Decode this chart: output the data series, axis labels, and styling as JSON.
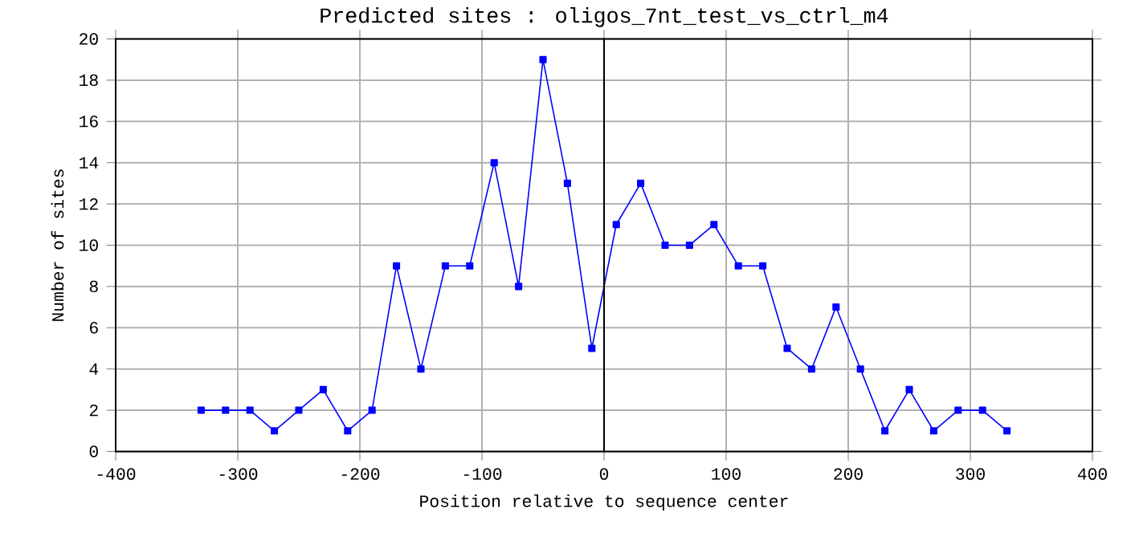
{
  "chart_data": {
    "type": "line",
    "title": "Predicted sites : oligos_7nt_test_vs_ctrl_m4",
    "xlabel": "Position relative to sequence center",
    "ylabel": "Number of sites",
    "x": [
      -330,
      -310,
      -290,
      -270,
      -250,
      -230,
      -210,
      -190,
      -170,
      -150,
      -130,
      -110,
      -90,
      -70,
      -50,
      -30,
      -10,
      10,
      30,
      50,
      70,
      90,
      110,
      130,
      150,
      170,
      190,
      210,
      230,
      250,
      270,
      290,
      310,
      330
    ],
    "series": [
      {
        "color": "#0000ff",
        "values": [
          2,
          2,
          2,
          1,
          2,
          3,
          1,
          2,
          9,
          4,
          9,
          9,
          14,
          8,
          19,
          13,
          5,
          11,
          13,
          10,
          10,
          11,
          9,
          9,
          5,
          4,
          7,
          4,
          1,
          3,
          1,
          2,
          2,
          1
        ]
      }
    ],
    "xlim": [
      -400,
      400
    ],
    "xticks": [
      -400,
      -300,
      -200,
      -100,
      0,
      100,
      200,
      300,
      400
    ],
    "ylim": [
      0,
      20
    ],
    "yticks": [
      0,
      2,
      4,
      6,
      8,
      10,
      12,
      14,
      16,
      18,
      20
    ],
    "ref_lines": [
      {
        "axis": "x",
        "value": 0,
        "color": "#000000"
      }
    ],
    "grid": true,
    "marker": "square",
    "line_style": "solid",
    "legend": false
  }
}
